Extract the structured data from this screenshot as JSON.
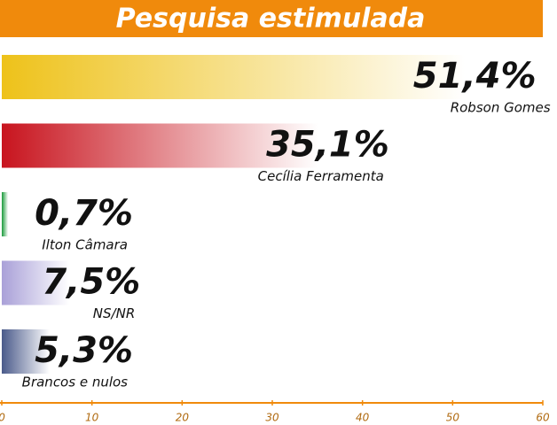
{
  "chart_data": {
    "type": "bar",
    "orientation": "horizontal",
    "title": "Pesquisa estimulada",
    "categories": [
      "Robson Gomes",
      "Cecília Ferramenta",
      "Ilton Câmara",
      "NS/NR",
      "Brancos e nulos"
    ],
    "values": [
      51.4,
      35.1,
      0.7,
      7.5,
      5.3
    ],
    "value_labels": [
      "51,4%",
      "35,1%",
      "0,7%",
      "7,5%",
      "5,3%"
    ],
    "colors": [
      "#eec21a",
      "#c8141e",
      "#1a9a3a",
      "#a9a0d8",
      "#4a5a8a"
    ],
    "xlim": [
      0,
      60
    ],
    "xticks": [
      0,
      10,
      20,
      30,
      40,
      50,
      60
    ]
  }
}
